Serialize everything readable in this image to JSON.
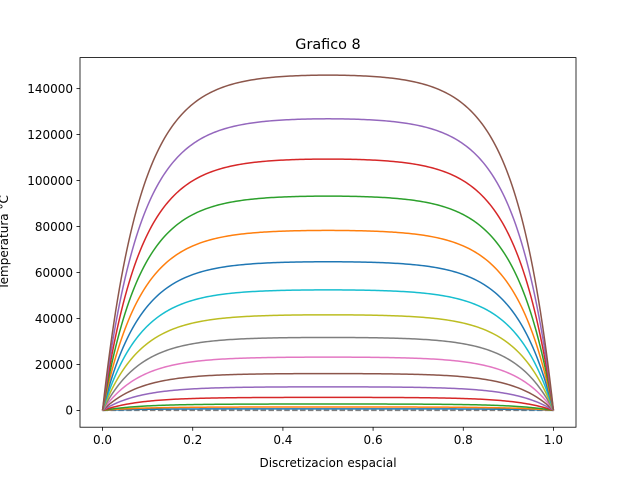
{
  "chart_data": {
    "type": "line",
    "title": "Grafico 8",
    "xlabel": "Discretizacion espacial",
    "ylabel": "Temperatura °C",
    "xlim": [
      -0.05,
      1.05
    ],
    "ylim": [
      -7300,
      153500
    ],
    "xticks": [
      {
        "value": 0.0,
        "label": "0.0"
      },
      {
        "value": 0.2,
        "label": "0.2"
      },
      {
        "value": 0.4,
        "label": "0.4"
      },
      {
        "value": 0.6,
        "label": "0.6"
      },
      {
        "value": 0.8,
        "label": "0.8"
      },
      {
        "value": 1.0,
        "label": "1.0"
      }
    ],
    "yticks": [
      {
        "value": 0,
        "label": "0"
      },
      {
        "value": 20000,
        "label": "20000"
      },
      {
        "value": 40000,
        "label": "40000"
      },
      {
        "value": 60000,
        "label": "60000"
      },
      {
        "value": 80000,
        "label": "80000"
      },
      {
        "value": 100000,
        "label": "100000"
      },
      {
        "value": 120000,
        "label": "120000"
      },
      {
        "value": 140000,
        "label": "140000"
      }
    ],
    "grid": false,
    "legend": "none",
    "curve_shape": {
      "rise_rate": 12,
      "x_end": 1.0
    },
    "series": [
      {
        "plateau": 0,
        "color": "#7f7f7f",
        "dashed": true
      },
      {
        "plateau": 700,
        "color": "#1f77b4"
      },
      {
        "plateau": 1500,
        "color": "#ff7f0e"
      },
      {
        "plateau": 2800,
        "color": "#2ca02c"
      },
      {
        "plateau": 5700,
        "color": "#d62728"
      },
      {
        "plateau": 10300,
        "color": "#9467bd"
      },
      {
        "plateau": 16100,
        "color": "#8c564b"
      },
      {
        "plateau": 23300,
        "color": "#e377c2"
      },
      {
        "plateau": 31900,
        "color": "#7f7f7f"
      },
      {
        "plateau": 41800,
        "color": "#bcbd22"
      },
      {
        "plateau": 52700,
        "color": "#17becf"
      },
      {
        "plateau": 65000,
        "color": "#1f77b4"
      },
      {
        "plateau": 78700,
        "color": "#ff7f0e"
      },
      {
        "plateau": 93700,
        "color": "#2ca02c"
      },
      {
        "plateau": 109900,
        "color": "#d62728"
      },
      {
        "plateau": 127500,
        "color": "#9467bd"
      },
      {
        "plateau": 146600,
        "color": "#8c564b"
      }
    ]
  }
}
